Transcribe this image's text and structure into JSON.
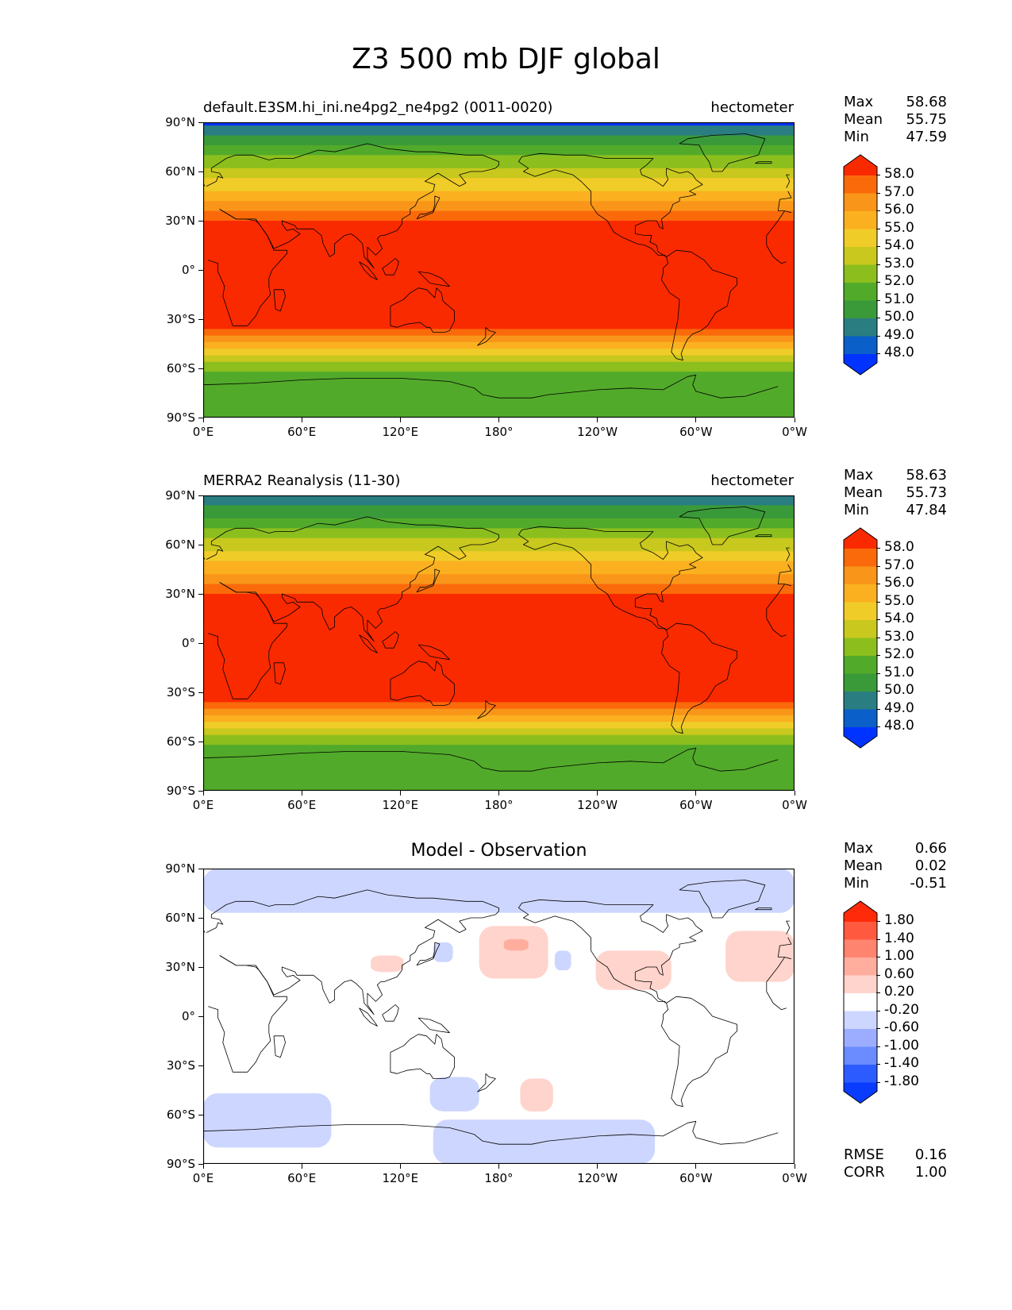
{
  "title": "Z3 500 mb DJF global",
  "x_ticks": [
    "0°E",
    "60°E",
    "120°E",
    "180°",
    "120°W",
    "60°W",
    "0°W"
  ],
  "y_ticks": [
    "90°N",
    "60°N",
    "30°N",
    "0°",
    "30°S",
    "60°S",
    "90°S"
  ],
  "stat_labels": {
    "max": "Max",
    "mean": "Mean",
    "min": "Min",
    "rmse": "RMSE",
    "corr": "CORR"
  },
  "colors": {
    "full_field": [
      "#0033ff",
      "#0a5fc8",
      "#2a7d80",
      "#3a9a3a",
      "#52aa2a",
      "#8cbf1e",
      "#c8c81e",
      "#f0cc28",
      "#fbb020",
      "#f9961a",
      "#fa6a0a",
      "#fa2a00"
    ],
    "difference": [
      "#0a3cff",
      "#2c5cff",
      "#6a8cff",
      "#9cadff",
      "#cdd6ff",
      "#ffffff",
      "#ffd4cc",
      "#ffae9e",
      "#ff8470",
      "#ff5a40",
      "#ff2a0a"
    ]
  },
  "chart_data": [
    {
      "type": "heatmap",
      "panel": "test",
      "title_left": "default.E3SM.hi_ini.ne4pg2_ne4pg2 (0011-0020)",
      "title_right": "hectometer",
      "variable": "Z3 500 mb DJF",
      "units": "hectometer",
      "stats": {
        "max": "58.68",
        "mean": "55.75",
        "min": "47.59"
      },
      "colorbar_levels": [
        "48.0",
        "49.0",
        "50.0",
        "51.0",
        "52.0",
        "53.0",
        "54.0",
        "55.0",
        "56.0",
        "57.0",
        "58.0"
      ],
      "xlim": [
        0,
        360
      ],
      "ylim": [
        -90,
        90
      ],
      "latitude_band_values": {
        "lat": [
          90,
          80,
          70,
          60,
          50,
          45,
          40,
          35,
          30,
          20,
          10,
          0,
          -10,
          -20,
          -30,
          -35,
          -40,
          -45,
          -50,
          -55,
          -60,
          -70,
          -80,
          -90
        ],
        "z3": [
          47.8,
          49.3,
          51.0,
          52.3,
          53.8,
          54.6,
          55.4,
          56.2,
          57.0,
          57.8,
          58.3,
          58.4,
          58.3,
          58.2,
          57.7,
          57.0,
          56.0,
          54.8,
          53.5,
          52.2,
          51.2,
          50.4,
          50.1,
          50.0
        ]
      }
    },
    {
      "type": "heatmap",
      "panel": "reference",
      "title_left": "MERRA2 Reanalysis (11-30)",
      "title_right": "hectometer",
      "variable": "Z3 500 mb DJF",
      "units": "hectometer",
      "stats": {
        "max": "58.63",
        "mean": "55.73",
        "min": "47.84"
      },
      "colorbar_levels": [
        "48.0",
        "49.0",
        "50.0",
        "51.0",
        "52.0",
        "53.0",
        "54.0",
        "55.0",
        "56.0",
        "57.0",
        "58.0"
      ],
      "xlim": [
        0,
        360
      ],
      "ylim": [
        -90,
        90
      ],
      "latitude_band_values": {
        "lat": [
          90,
          80,
          70,
          60,
          50,
          45,
          40,
          35,
          30,
          20,
          10,
          0,
          -10,
          -20,
          -30,
          -35,
          -40,
          -45,
          -50,
          -55,
          -60,
          -70,
          -80,
          -90
        ],
        "z3": [
          48.0,
          49.5,
          51.1,
          52.4,
          53.9,
          54.6,
          55.4,
          56.2,
          57.0,
          57.8,
          58.3,
          58.4,
          58.3,
          58.2,
          57.7,
          57.0,
          56.0,
          54.8,
          53.5,
          52.2,
          51.1,
          50.3,
          50.1,
          50.0
        ]
      }
    },
    {
      "type": "heatmap",
      "panel": "difference",
      "title_center": "Model - Observation",
      "units": "hectometer",
      "stats": {
        "max": "0.66",
        "mean": "0.02",
        "min": "-0.51"
      },
      "metrics": {
        "rmse": "0.16",
        "corr": "1.00"
      },
      "colorbar_levels": [
        "-1.80",
        "-1.40",
        "-1.00",
        "-0.60",
        "-0.20",
        "0.20",
        "0.60",
        "1.00",
        "1.40",
        "1.80"
      ],
      "xlim": [
        0,
        360
      ],
      "ylim": [
        -90,
        90
      ],
      "regions": [
        {
          "name": "arctic-negative",
          "lon": [
            0,
            360
          ],
          "lat": [
            63,
            90
          ],
          "value": -0.3
        },
        {
          "name": "north-pacific-positive",
          "lon": [
            168,
            210
          ],
          "lat": [
            23,
            55
          ],
          "value": 0.3
        },
        {
          "name": "north-pacific-core",
          "lon": [
            183,
            198
          ],
          "lat": [
            40,
            47
          ],
          "value": 0.65
        },
        {
          "name": "north-america-positive",
          "lon": [
            239,
            285
          ],
          "lat": [
            16,
            40
          ],
          "value": 0.3
        },
        {
          "name": "north-atlantic-positive",
          "lon": [
            318,
            360
          ],
          "lat": [
            21,
            52
          ],
          "value": 0.3
        },
        {
          "name": "east-asia-positive",
          "lon": [
            102,
            122
          ],
          "lat": [
            27,
            37
          ],
          "value": 0.3
        },
        {
          "name": "japan-negative",
          "lon": [
            140,
            152
          ],
          "lat": [
            33,
            45
          ],
          "value": -0.3
        },
        {
          "name": "north-pacific-negative",
          "lon": [
            214,
            224
          ],
          "lat": [
            28,
            40
          ],
          "value": -0.3
        },
        {
          "name": "south-pacific-positive",
          "lon": [
            193,
            213
          ],
          "lat": [
            -58,
            -38
          ],
          "value": 0.3
        },
        {
          "name": "tasman-negative",
          "lon": [
            138,
            168
          ],
          "lat": [
            -58,
            -37
          ],
          "value": -0.3
        },
        {
          "name": "southern-indian-negative",
          "lon": [
            0,
            78
          ],
          "lat": [
            -80,
            -47
          ],
          "value": -0.3
        },
        {
          "name": "antarctic-negative",
          "lon": [
            140,
            275
          ],
          "lat": [
            -90,
            -63
          ],
          "value": -0.3
        }
      ]
    }
  ]
}
